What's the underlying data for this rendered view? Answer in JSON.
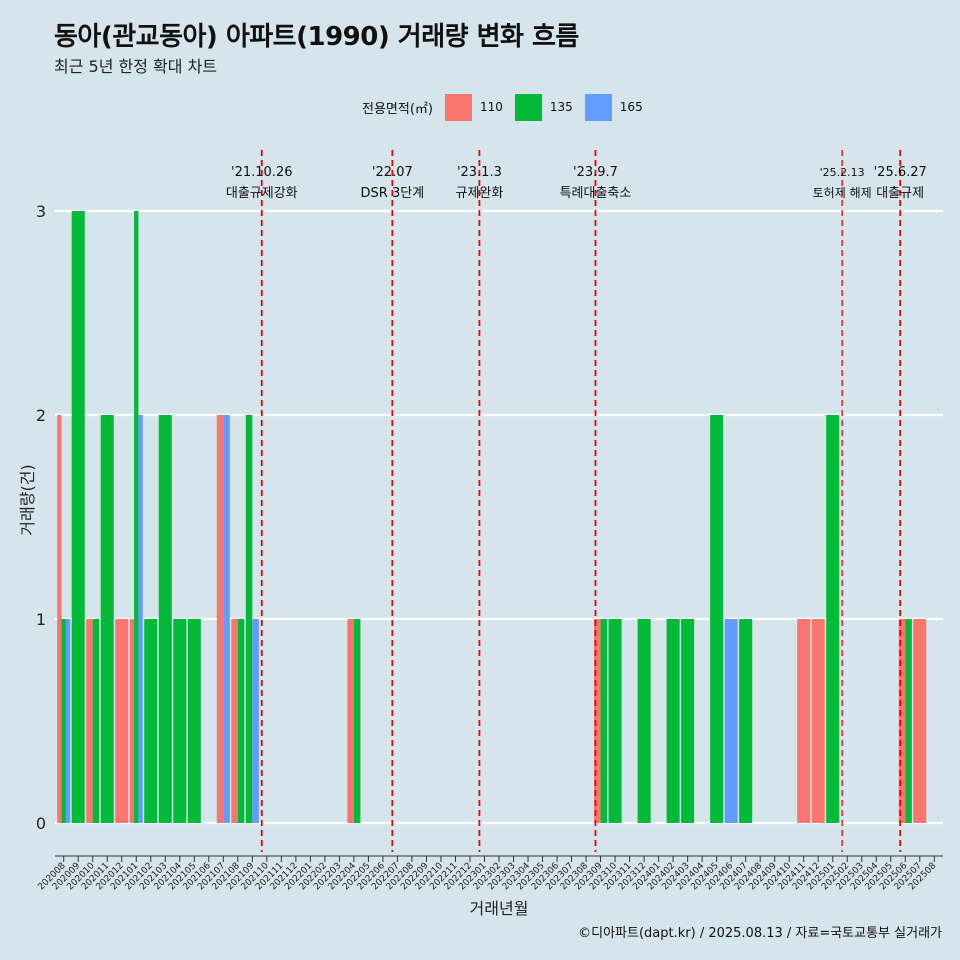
{
  "title": "동아(관교동아) 아파트(1990) 거래량 변화 흐름",
  "subtitle": "최근 5년 한정 확대 차트",
  "caption": "©디아파트(dapt.kr) / 2025.08.13 / 자료=국토교통부 실거래가",
  "legend": {
    "title": "전용면적(㎡)",
    "items": [
      {
        "label": "110",
        "color": "#f8766d"
      },
      {
        "label": "135",
        "color": "#00ba38"
      },
      {
        "label": "165",
        "color": "#619cff"
      }
    ]
  },
  "chart_data": {
    "type": "bar",
    "xlabel": "거래년월",
    "ylabel": "거래량(건)",
    "ylim": [
      0,
      3
    ],
    "yticks": [
      0,
      1,
      2,
      3
    ],
    "grid": true,
    "legend_position": "top",
    "categories": [
      "202008",
      "202009",
      "202010",
      "202011",
      "202012",
      "202101",
      "202102",
      "202103",
      "202104",
      "202105",
      "202106",
      "202107",
      "202108",
      "202109",
      "202110",
      "202111",
      "202112",
      "202201",
      "202202",
      "202203",
      "202204",
      "202205",
      "202206",
      "202207",
      "202208",
      "202209",
      "202210",
      "202211",
      "202212",
      "202301",
      "202302",
      "202303",
      "202304",
      "202305",
      "202306",
      "202307",
      "202308",
      "202309",
      "202310",
      "202311",
      "202312",
      "202401",
      "202402",
      "202403",
      "202404",
      "202405",
      "202406",
      "202407",
      "202408",
      "202409",
      "202410",
      "202411",
      "202412",
      "202501",
      "202502",
      "202503",
      "202504",
      "202505",
      "202506",
      "202507",
      "202508"
    ],
    "series": [
      {
        "name": "110",
        "values": [
          2,
          0,
          1,
          0,
          1,
          1,
          0,
          0,
          0,
          0,
          0,
          2,
          1,
          0,
          0,
          0,
          0,
          0,
          0,
          0,
          1,
          0,
          0,
          0,
          0,
          0,
          0,
          0,
          0,
          0,
          0,
          0,
          0,
          0,
          0,
          0,
          0,
          1,
          0,
          0,
          0,
          0,
          0,
          0,
          0,
          0,
          0,
          0,
          0,
          0,
          0,
          1,
          1,
          0,
          0,
          0,
          0,
          0,
          1,
          1,
          0
        ]
      },
      {
        "name": "135",
        "values": [
          1,
          3,
          1,
          2,
          0,
          3,
          1,
          2,
          1,
          1,
          0,
          0,
          1,
          2,
          0,
          0,
          0,
          0,
          0,
          0,
          1,
          0,
          0,
          0,
          0,
          0,
          0,
          0,
          0,
          0,
          0,
          0,
          0,
          0,
          0,
          0,
          0,
          1,
          1,
          0,
          1,
          0,
          1,
          1,
          0,
          2,
          0,
          1,
          0,
          0,
          0,
          0,
          0,
          2,
          0,
          0,
          0,
          0,
          1,
          0,
          0
        ]
      },
      {
        "name": "165",
        "values": [
          1,
          0,
          0,
          0,
          0,
          2,
          0,
          0,
          0,
          0,
          0,
          2,
          0,
          1,
          0,
          0,
          0,
          0,
          0,
          0,
          0,
          0,
          0,
          0,
          0,
          0,
          0,
          0,
          0,
          0,
          0,
          0,
          0,
          0,
          0,
          0,
          0,
          0,
          0,
          0,
          0,
          0,
          0,
          0,
          0,
          0,
          1,
          0,
          0,
          0,
          0,
          0,
          0,
          0,
          0,
          0,
          0,
          0,
          0,
          0,
          0
        ]
      }
    ],
    "annotations": [
      {
        "date": "'21.10.26",
        "label": "대출규제강화",
        "x": "202110"
      },
      {
        "date": "'22.07",
        "label": "DSR 3단계",
        "x": "202207"
      },
      {
        "date": "'23.1.3",
        "label": "규제완화",
        "x": "202301"
      },
      {
        "date": "'23.9.7",
        "label": "특례대출축소",
        "x": "202309"
      },
      {
        "date": "'25.2.13",
        "label": "토허제 해제",
        "x": "202502"
      },
      {
        "date": "'25.6.27",
        "label": "대출규제",
        "x": "202506"
      }
    ]
  }
}
